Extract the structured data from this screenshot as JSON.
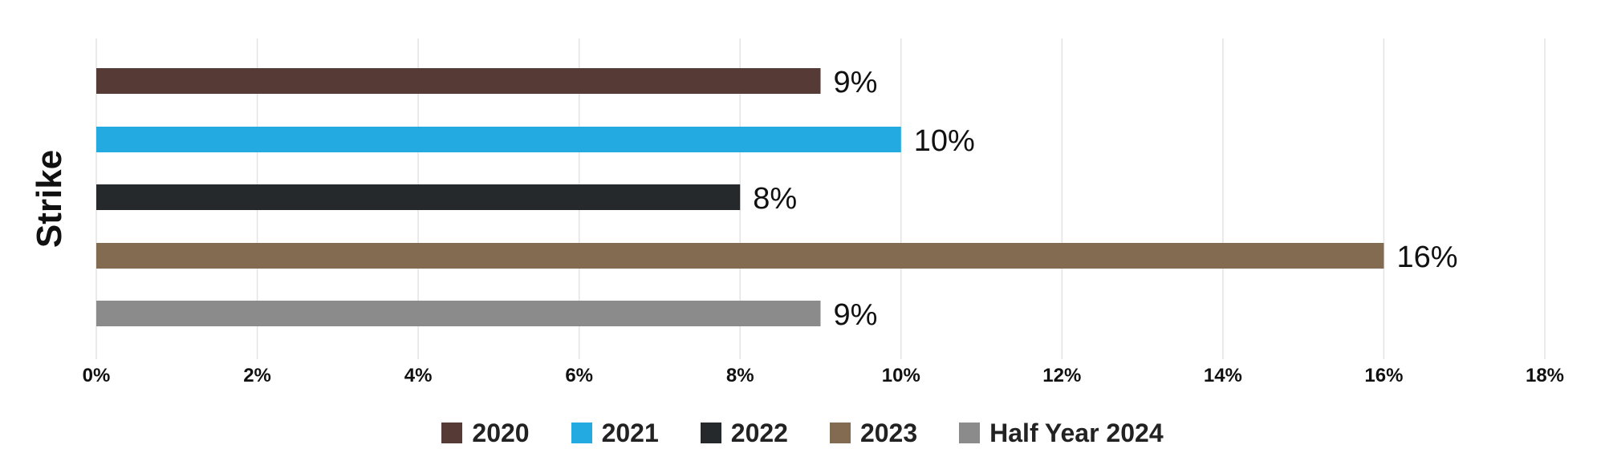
{
  "chart_data": {
    "type": "bar",
    "orientation": "horizontal",
    "categories": [
      "Strike"
    ],
    "ylabel": "Strike",
    "xlim": [
      0,
      18
    ],
    "xticks": [
      "0%",
      "2%",
      "4%",
      "6%",
      "8%",
      "10%",
      "12%",
      "14%",
      "16%",
      "18%"
    ],
    "grid": "vertical",
    "legend_position": "bottom",
    "series": [
      {
        "name": "2020",
        "value": 9,
        "label": "9%",
        "color": "#553a35"
      },
      {
        "name": "2021",
        "value": 10,
        "label": "10%",
        "color": "#23abe1"
      },
      {
        "name": "2022",
        "value": 8,
        "label": "8%",
        "color": "#26292c"
      },
      {
        "name": "2023",
        "value": 16,
        "label": "16%",
        "color": "#836b51"
      },
      {
        "name": "Half Year 2024",
        "value": 9,
        "label": "9%",
        "color": "#8c8b8b"
      }
    ]
  }
}
